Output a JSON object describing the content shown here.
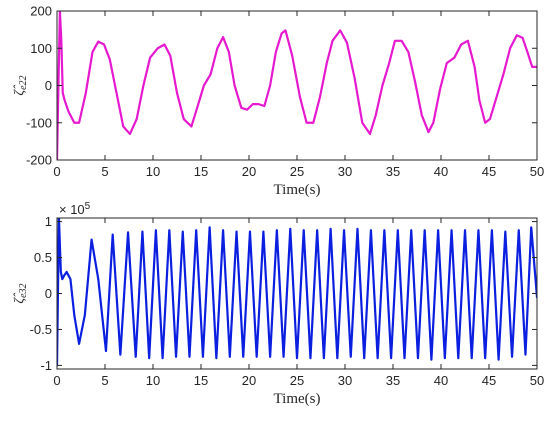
{
  "chart_data": [
    {
      "type": "line",
      "ylabel": "ζ̂",
      "ylabel_sub": "e22",
      "xlabel": "Time(s)",
      "xlim": [
        0,
        50
      ],
      "ylim": [
        -200,
        200
      ],
      "xticks": [
        0,
        5,
        10,
        15,
        20,
        25,
        30,
        35,
        40,
        45,
        50
      ],
      "yticks": [
        -200,
        -100,
        0,
        100,
        200
      ],
      "ytick_labels": [
        "-200",
        "-100",
        "0",
        "100",
        "200"
      ],
      "grid": false,
      "color": "#e619d0",
      "series": [
        {
          "x": [
            0.0,
            0.15,
            0.3,
            0.45,
            0.6,
            0.8,
            1.2,
            1.8,
            2.3,
            3.0,
            3.7,
            4.3,
            4.9,
            5.5,
            6.2,
            6.9,
            7.6,
            8.3,
            9.0,
            9.7,
            10.5,
            11.2,
            11.8,
            12.5,
            13.2,
            14.0,
            14.6,
            15.3,
            16.0,
            16.7,
            17.3,
            17.9,
            18.5,
            19.2,
            19.8,
            20.4,
            21.0,
            21.6,
            22.2,
            22.8,
            23.4,
            23.8,
            24.5,
            25.3,
            26.0,
            26.7,
            27.4,
            28.1,
            28.7,
            29.5,
            30.2,
            31.0,
            31.8,
            32.6,
            33.2,
            33.9,
            34.6,
            35.2,
            35.9,
            36.6,
            37.3,
            38.0,
            38.7,
            39.2,
            39.9,
            40.6,
            41.4,
            42.1,
            42.8,
            43.5,
            44.0,
            44.6,
            45.1,
            45.8,
            46.5,
            47.2,
            47.9,
            48.5,
            49.0,
            49.5,
            50.0
          ],
          "values": [
            -200,
            0,
            200,
            120,
            -20,
            -40,
            -70,
            -100,
            -100,
            -20,
            90,
            118,
            110,
            70,
            -20,
            -110,
            -130,
            -90,
            0,
            75,
            100,
            110,
            80,
            -20,
            -90,
            -110,
            -60,
            0,
            30,
            100,
            130,
            90,
            0,
            -60,
            -65,
            -50,
            -50,
            -55,
            0,
            90,
            140,
            148,
            80,
            -30,
            -100,
            -100,
            -30,
            60,
            120,
            148,
            115,
            20,
            -100,
            -130,
            -80,
            0,
            60,
            120,
            120,
            90,
            10,
            -80,
            -125,
            -100,
            -10,
            60,
            75,
            110,
            120,
            50,
            -40,
            -100,
            -90,
            -30,
            30,
            100,
            135,
            128,
            90,
            50,
            50
          ]
        }
      ]
    },
    {
      "type": "line",
      "ylabel": "ζ̂",
      "ylabel_sub": "e32",
      "xlabel": "Time(s)",
      "multiplier": "× 10",
      "multiplier_exp": "5",
      "xlim": [
        0,
        50
      ],
      "ylim": [
        -1.05,
        1.05
      ],
      "xticks": [
        0,
        5,
        10,
        15,
        20,
        25,
        30,
        35,
        40,
        45,
        50
      ],
      "yticks": [
        -1,
        -0.5,
        0,
        0.5,
        1
      ],
      "ytick_labels": [
        "-1",
        "-0.5",
        "0",
        "0.5",
        "1"
      ],
      "grid": false,
      "color": "#0a1fe0",
      "series": [
        {
          "x": [
            0.0,
            0.2,
            0.4,
            0.55,
            0.75,
            1.0,
            1.4,
            1.8,
            2.3,
            2.9,
            3.6,
            4.3,
            5.1,
            5.8,
            6.6,
            7.4,
            8.2,
            8.9,
            9.6,
            10.3,
            11.0,
            11.7,
            12.4,
            13.1,
            13.8,
            14.5,
            15.2,
            15.9,
            16.6,
            17.3,
            18.0,
            18.7,
            19.4,
            20.1,
            20.8,
            21.5,
            22.2,
            22.9,
            23.6,
            24.3,
            25.0,
            25.7,
            26.4,
            27.1,
            27.8,
            28.5,
            29.2,
            29.9,
            30.6,
            31.3,
            32.0,
            32.7,
            33.4,
            34.1,
            34.8,
            35.5,
            36.2,
            36.9,
            37.6,
            38.3,
            39.0,
            39.7,
            40.4,
            41.1,
            41.8,
            42.5,
            43.2,
            43.9,
            44.6,
            45.3,
            46.0,
            46.7,
            47.4,
            48.1,
            48.8,
            49.4,
            50.0
          ],
          "values": [
            -1.0,
            1.05,
            0.3,
            0.2,
            0.25,
            0.3,
            0.2,
            -0.3,
            -0.7,
            -0.3,
            0.75,
            0.2,
            -0.8,
            0.82,
            -0.85,
            0.85,
            -0.88,
            0.86,
            -0.9,
            0.88,
            -0.9,
            0.88,
            -0.88,
            0.86,
            -0.88,
            0.88,
            -0.88,
            0.92,
            -0.9,
            0.88,
            -0.88,
            0.86,
            -0.88,
            0.86,
            -0.88,
            0.86,
            -0.88,
            0.88,
            -0.88,
            0.9,
            -0.9,
            0.88,
            -0.9,
            0.88,
            -0.9,
            0.9,
            -0.9,
            0.88,
            -0.88,
            0.9,
            -0.9,
            0.88,
            -0.9,
            0.88,
            -0.9,
            0.88,
            -0.9,
            0.88,
            -0.9,
            0.88,
            -0.92,
            0.88,
            -0.9,
            0.88,
            -0.9,
            0.88,
            -0.9,
            0.88,
            -0.9,
            0.88,
            -0.92,
            0.86,
            -0.88,
            0.88,
            -0.85,
            0.92,
            -0.05
          ]
        }
      ]
    }
  ]
}
